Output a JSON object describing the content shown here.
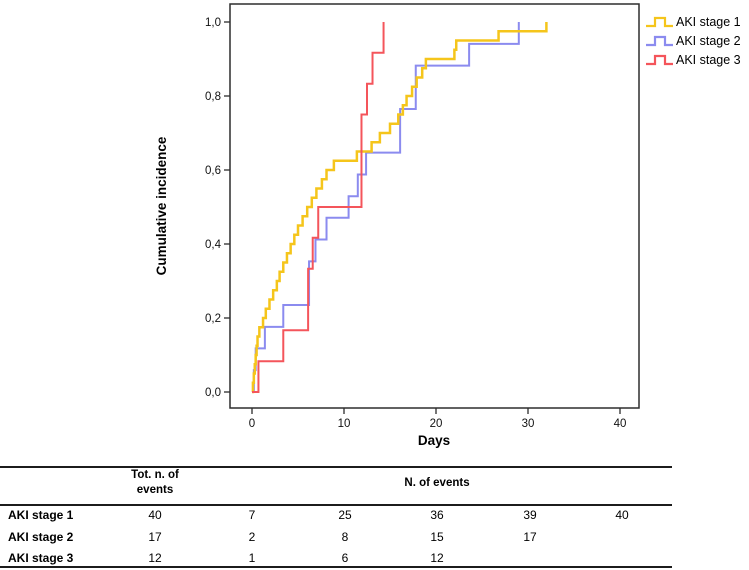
{
  "chart_data": {
    "type": "line",
    "subtype": "step-cumulative-incidence",
    "title": "",
    "xlabel": "Days",
    "ylabel": "Cumulative incidence",
    "xlim": [
      -2.4,
      42.1
    ],
    "ylim": [
      -0.043,
      1.049
    ],
    "xticks": [
      0,
      10,
      20,
      30,
      40
    ],
    "xtick_labels": [
      "0",
      "10",
      "20",
      "30",
      "40"
    ],
    "yticks": [
      0,
      0.2,
      0.4,
      0.6,
      0.8,
      1
    ],
    "ytick_labels": [
      "0,0",
      "0,2",
      "0,4",
      "0,6",
      "0,8",
      "1,0"
    ],
    "grid": false,
    "legend_position": "outside-top-right",
    "series": [
      {
        "name": "AKI stage 1",
        "color": "#F5C51B",
        "total_events": 40,
        "points": [
          [
            0.1,
            0.025
          ],
          [
            0.2,
            0.05
          ],
          [
            0.3,
            0.075
          ],
          [
            0.4,
            0.1
          ],
          [
            0.5,
            0.125
          ],
          [
            0.6,
            0.15
          ],
          [
            0.8,
            0.175
          ],
          [
            1.2,
            0.2
          ],
          [
            1.5,
            0.225
          ],
          [
            1.9,
            0.25
          ],
          [
            2.3,
            0.275
          ],
          [
            2.7,
            0.3
          ],
          [
            3.0,
            0.325
          ],
          [
            3.4,
            0.35
          ],
          [
            3.8,
            0.375
          ],
          [
            4.2,
            0.4
          ],
          [
            4.6,
            0.425
          ],
          [
            5.0,
            0.45
          ],
          [
            5.5,
            0.475
          ],
          [
            6.0,
            0.5
          ],
          [
            6.5,
            0.525
          ],
          [
            7.0,
            0.55
          ],
          [
            7.6,
            0.575
          ],
          [
            8.1,
            0.6
          ],
          [
            8.9,
            0.625
          ],
          [
            11.4,
            0.65
          ],
          [
            13.0,
            0.675
          ],
          [
            13.9,
            0.7
          ],
          [
            15.0,
            0.725
          ],
          [
            15.9,
            0.75
          ],
          [
            16.4,
            0.775
          ],
          [
            16.8,
            0.8
          ],
          [
            17.4,
            0.825
          ],
          [
            17.9,
            0.85
          ],
          [
            18.5,
            0.875
          ],
          [
            18.9,
            0.9
          ],
          [
            22.0,
            0.925
          ],
          [
            22.2,
            0.95
          ],
          [
            26.8,
            0.975
          ],
          [
            32.0,
            1.0
          ]
        ]
      },
      {
        "name": "AKI stage 2",
        "color": "#8B8BEF",
        "total_events": 17,
        "points": [
          [
            0.2,
            0.059
          ],
          [
            0.4,
            0.118
          ],
          [
            1.4,
            0.176
          ],
          [
            3.4,
            0.235
          ],
          [
            6.2,
            0.294
          ],
          [
            6.2,
            0.353
          ],
          [
            6.9,
            0.412
          ],
          [
            8.1,
            0.471
          ],
          [
            10.5,
            0.529
          ],
          [
            11.5,
            0.588
          ],
          [
            12.4,
            0.647
          ],
          [
            16.1,
            0.706
          ],
          [
            16.1,
            0.765
          ],
          [
            17.8,
            0.824
          ],
          [
            17.8,
            0.882
          ],
          [
            23.6,
            0.941
          ],
          [
            29.0,
            1.0
          ]
        ]
      },
      {
        "name": "AKI stage 3",
        "color": "#F4555B",
        "total_events": 12,
        "points": [
          [
            0.7,
            0.083
          ],
          [
            3.4,
            0.167
          ],
          [
            6.1,
            0.25
          ],
          [
            6.1,
            0.333
          ],
          [
            6.6,
            0.417
          ],
          [
            7.2,
            0.5
          ],
          [
            11.9,
            0.583
          ],
          [
            11.9,
            0.667
          ],
          [
            11.9,
            0.75
          ],
          [
            12.5,
            0.833
          ],
          [
            13.1,
            0.917
          ],
          [
            14.3,
            1.0
          ]
        ]
      }
    ]
  },
  "table": {
    "header_total_line1": "Tot. n. of",
    "header_total_line2": "events",
    "header_events": "N. of events",
    "rows": [
      {
        "label": "AKI stage 1",
        "total": "40",
        "events": [
          "7",
          "25",
          "36",
          "39",
          "40"
        ]
      },
      {
        "label": "AKI stage 2",
        "total": "17",
        "events": [
          "2",
          "8",
          "15",
          "17",
          ""
        ]
      },
      {
        "label": "AKI stage 3",
        "total": "12",
        "events": [
          "1",
          "6",
          "12",
          "",
          ""
        ]
      }
    ]
  }
}
